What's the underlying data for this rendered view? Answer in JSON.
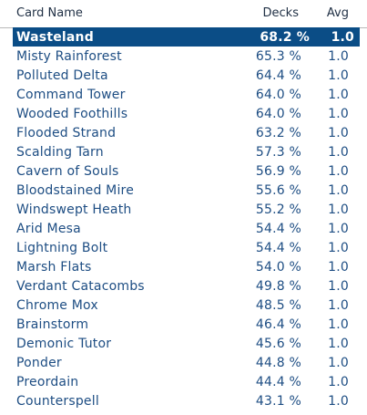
{
  "table": {
    "headers": {
      "name": "Card Name",
      "decks": "Decks",
      "avg": "Avg"
    },
    "selected_row_color": "#0b4d86",
    "text_color": "#1d4d83",
    "rows": [
      {
        "name": "Wasteland",
        "decks": "68.2 %",
        "avg": "1.0",
        "selected": true
      },
      {
        "name": "Misty Rainforest",
        "decks": "65.3 %",
        "avg": "1.0"
      },
      {
        "name": "Polluted Delta",
        "decks": "64.4 %",
        "avg": "1.0"
      },
      {
        "name": "Command Tower",
        "decks": "64.0 %",
        "avg": "1.0"
      },
      {
        "name": "Wooded Foothills",
        "decks": "64.0 %",
        "avg": "1.0"
      },
      {
        "name": "Flooded Strand",
        "decks": "63.2 %",
        "avg": "1.0"
      },
      {
        "name": "Scalding Tarn",
        "decks": "57.3 %",
        "avg": "1.0"
      },
      {
        "name": "Cavern of Souls",
        "decks": "56.9 %",
        "avg": "1.0"
      },
      {
        "name": "Bloodstained Mire",
        "decks": "55.6 %",
        "avg": "1.0"
      },
      {
        "name": "Windswept Heath",
        "decks": "55.2 %",
        "avg": "1.0"
      },
      {
        "name": "Arid Mesa",
        "decks": "54.4 %",
        "avg": "1.0"
      },
      {
        "name": "Lightning Bolt",
        "decks": "54.4 %",
        "avg": "1.0"
      },
      {
        "name": "Marsh Flats",
        "decks": "54.0 %",
        "avg": "1.0"
      },
      {
        "name": "Verdant Catacombs",
        "decks": "49.8 %",
        "avg": "1.0"
      },
      {
        "name": "Chrome Mox",
        "decks": "48.5 %",
        "avg": "1.0"
      },
      {
        "name": "Brainstorm",
        "decks": "46.4 %",
        "avg": "1.0"
      },
      {
        "name": "Demonic Tutor",
        "decks": "45.6 %",
        "avg": "1.0"
      },
      {
        "name": "Ponder",
        "decks": "44.8 %",
        "avg": "1.0"
      },
      {
        "name": "Preordain",
        "decks": "44.4 %",
        "avg": "1.0"
      },
      {
        "name": "Counterspell",
        "decks": "43.1 %",
        "avg": "1.0"
      }
    ]
  }
}
